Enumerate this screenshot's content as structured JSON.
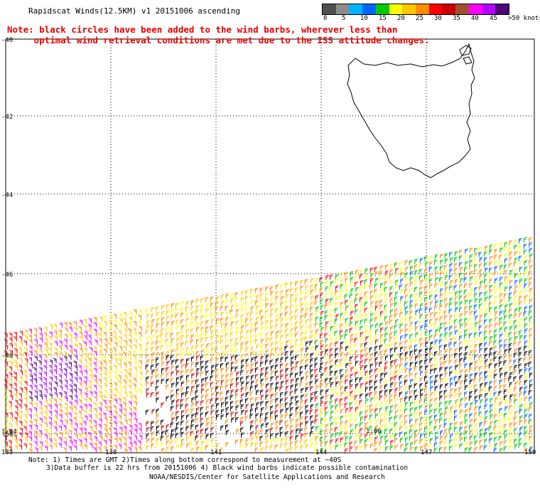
{
  "title": "Rapidscat Winds(12.5KM) v1 20151006 ascending",
  "note": "Note: black circles have been added to the wind barbs, wherever less than\n     optimal wind retrieval conditions are met due to the ISS attitude changes.",
  "legend": {
    "colors": [
      "#505050",
      "#8c8c8c",
      "#00b4ff",
      "#0064ff",
      "#00c800",
      "#ffff00",
      "#ffc800",
      "#ff8c00",
      "#ff0000",
      "#c80000",
      "#a0522d",
      "#ff00ff",
      "#b400ff",
      "#500078"
    ],
    "labels": [
      {
        "text": "0",
        "pos": 0
      },
      {
        "text": "5",
        "pos": 1
      },
      {
        "text": "10",
        "pos": 2
      },
      {
        "text": "15",
        "pos": 3
      },
      {
        "text": "20",
        "pos": 4
      },
      {
        "text": "25",
        "pos": 5
      },
      {
        "text": "30",
        "pos": 6
      },
      {
        "text": "35",
        "pos": 7
      },
      {
        "text": "40",
        "pos": 8
      },
      {
        "text": "45",
        "pos": 9
      },
      {
        "text": ">50 knots",
        "pos": 10
      }
    ]
  },
  "lat_labels": [
    "-40",
    "-42",
    "-44",
    "-46",
    "-48",
    "-50"
  ],
  "lon_labels": [
    "135",
    "138",
    "141",
    "144",
    "147",
    "150"
  ],
  "time_labels": [
    "1:04",
    "1:06"
  ],
  "footnote_line1": "Note: 1) Times are GMT 2)Times along bottom correspond to measurement at ~40S",
  "footnote_line2": "3)Data buffer is 22 hrs from 20151006 4) Black wind barbs indicate possible contamination",
  "credit": "NOAA/NESDIS/Center for Satellite Applications and Research"
}
